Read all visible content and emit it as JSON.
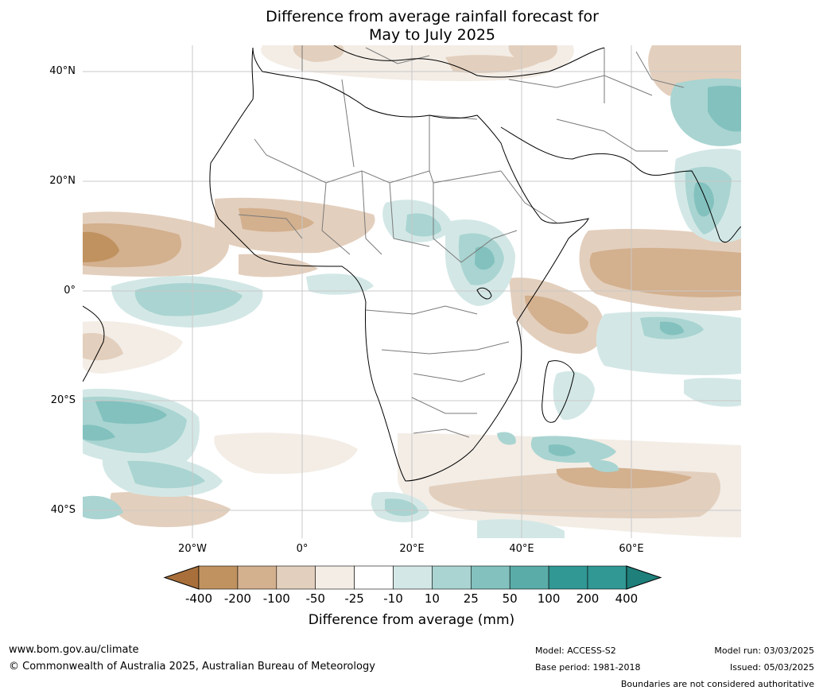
{
  "title": {
    "line1": "Difference from average rainfall forecast for",
    "line2": "May to July 2025"
  },
  "map": {
    "lat_labels": [
      "40°N",
      "20°N",
      "0°",
      "20°S",
      "40°S"
    ],
    "lon_labels": [
      "20°W",
      "0°",
      "20°E",
      "40°E",
      "60°E"
    ]
  },
  "colorbar": {
    "title": "Difference from average (mm)",
    "tick_labels": [
      "-400",
      "-200",
      "-100",
      "-50",
      "-25",
      "-10",
      "10",
      "25",
      "50",
      "100",
      "200",
      "400"
    ],
    "colors": [
      "#a86f3a",
      "#c0925f",
      "#d3b08e",
      "#e3cfbd",
      "#f3ede6",
      "#ffffff",
      "#d3e8e6",
      "#a9d4d1",
      "#82c1be",
      "#5aaca8",
      "#319894",
      "#1e7f7b"
    ]
  },
  "footer": {
    "website": "www.bom.gov.au/climate",
    "copyright": "© Commonwealth of Australia 2025, Australian Bureau of Meteorology",
    "model": "Model: ACCESS-S2",
    "base_period": "Base period: 1981-2018",
    "model_run": "Model run: 03/03/2025",
    "issued": "Issued: 05/03/2025",
    "disclaimer": "Boundaries are not considered authoritative"
  }
}
